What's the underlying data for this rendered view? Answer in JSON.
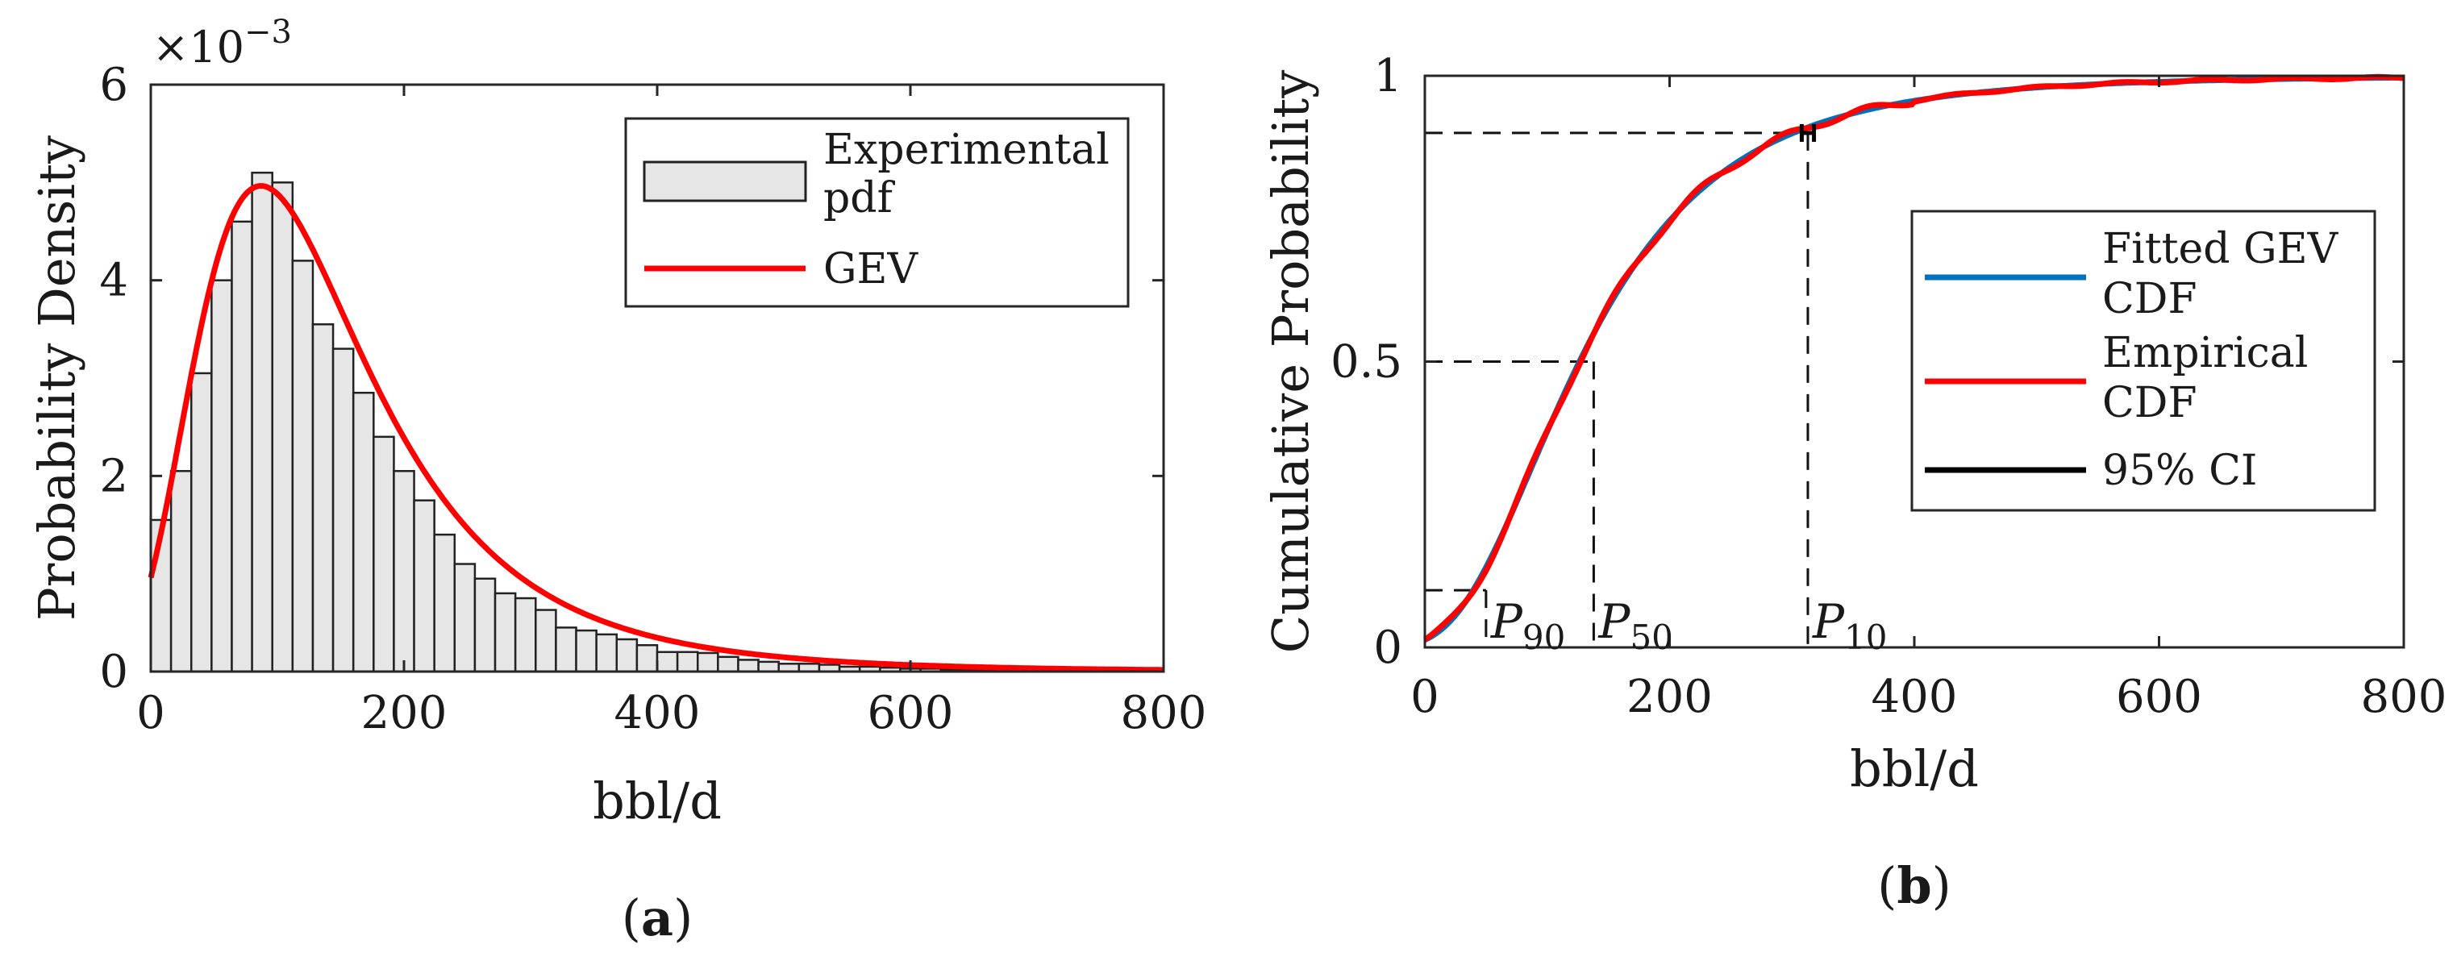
{
  "chart_data": [
    {
      "type": "bar",
      "panel": "a",
      "caption_letter": "a",
      "xlabel": "bbl/d",
      "ylabel": "Probability Density",
      "y_exponent_label": "×10",
      "y_exponent_power": "−3",
      "xlim": [
        0,
        800
      ],
      "ylim": [
        0,
        6
      ],
      "xticks": [
        "0",
        "200",
        "400",
        "600",
        "800"
      ],
      "yticks": [
        "0",
        "2",
        "4",
        "6"
      ],
      "bin_width": 16,
      "bar_values": [
        1.55,
        2.05,
        3.05,
        4.0,
        4.6,
        5.1,
        5.0,
        4.2,
        3.55,
        3.3,
        2.85,
        2.4,
        2.05,
        1.75,
        1.4,
        1.1,
        0.95,
        0.8,
        0.75,
        0.63,
        0.45,
        0.42,
        0.38,
        0.33,
        0.27,
        0.2,
        0.2,
        0.19,
        0.15,
        0.12,
        0.1,
        0.08,
        0.08,
        0.07,
        0.05,
        0.05,
        0.04,
        0.03,
        0.03,
        0.02,
        0.02,
        0.02,
        0.01,
        0.01,
        0.01,
        0.01,
        0.01,
        0.01,
        0.01,
        0.01
      ],
      "gev_params": {
        "mu": 98,
        "sigma": 75,
        "xi": 0.16
      },
      "legend": {
        "position": "top-right",
        "entries": [
          "Experimental pdf",
          "GEV"
        ]
      },
      "colors": {
        "bar_fill": "#e6e6e6",
        "bar_edge": "#222222",
        "gev": "#ff0000"
      }
    },
    {
      "type": "line",
      "panel": "b",
      "caption_letter": "b",
      "xlabel": "bbl/d",
      "ylabel": "Cumulative Probability",
      "xlim": [
        0,
        800
      ],
      "ylim": [
        0,
        1
      ],
      "xticks": [
        "0",
        "200",
        "400",
        "600",
        "800"
      ],
      "yticks": [
        "0",
        "0.5",
        "1"
      ],
      "gev_params": {
        "mu": 98,
        "sigma": 75,
        "xi": 0.16
      },
      "series": [
        {
          "name": "Fitted GEV CDF",
          "color": "#0072bd"
        },
        {
          "name": "Empirical CDF",
          "color": "#ff0000"
        },
        {
          "name": "95% CI",
          "color": "#000000"
        }
      ],
      "percentiles": [
        {
          "label": "P",
          "sub": "90",
          "x": 50,
          "y": 0.1
        },
        {
          "label": "P",
          "sub": "50",
          "x": 138,
          "y": 0.5
        },
        {
          "label": "P",
          "sub": "10",
          "x": 313,
          "y": 0.9
        }
      ],
      "ci_at_p10": [
        308,
        318
      ],
      "legend": {
        "position": "center-right",
        "entries": [
          "Fitted GEV CDF",
          "Empirical CDF",
          "95% CI"
        ]
      }
    }
  ]
}
